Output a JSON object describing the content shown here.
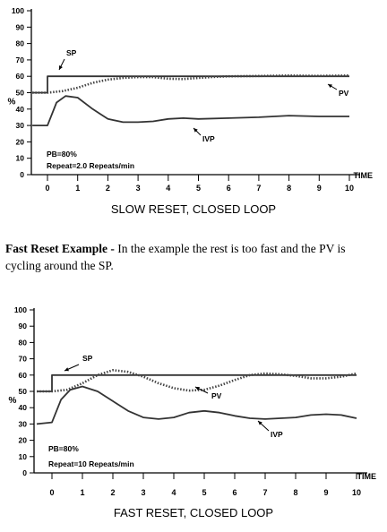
{
  "chart_data": [
    {
      "type": "line",
      "ylabel": "%",
      "xlabel": "TIME",
      "caption": "SLOW RESET, CLOSED LOOP",
      "xlim": [
        0,
        10
      ],
      "ylim": [
        0,
        100
      ],
      "x_ticks": [
        "0",
        "1",
        "2",
        "3",
        "4",
        "5",
        "6",
        "7",
        "8",
        "9",
        "10"
      ],
      "y_ticks": [
        "0",
        "10",
        "20",
        "30",
        "40",
        "50",
        "60",
        "70",
        "80",
        "90",
        "100"
      ],
      "annotations": {
        "sp": "SP",
        "pv": "PV",
        "ivp": "IVP",
        "pb": "PB=80%",
        "repeat": "Repeat=2.0 Repeats/min"
      },
      "series": [
        {
          "name": "SP",
          "style": "solid",
          "x": [
            -0.5,
            0,
            0,
            10
          ],
          "y": [
            50,
            50,
            60,
            60
          ]
        },
        {
          "name": "PV",
          "style": "dotted",
          "x": [
            -0.5,
            0,
            0.5,
            1,
            1.5,
            2,
            2.5,
            3,
            3.5,
            4,
            4.5,
            5,
            5.5,
            6,
            7,
            8,
            9,
            10
          ],
          "y": [
            50,
            50,
            51,
            53,
            56,
            58,
            59,
            59.5,
            59.5,
            58.5,
            58.3,
            59,
            59.6,
            60,
            60.2,
            60.5,
            60.3,
            60.5
          ]
        },
        {
          "name": "IVP",
          "style": "solid",
          "x": [
            -0.5,
            0,
            0.3,
            0.6,
            1,
            1.5,
            2,
            2.5,
            3,
            3.5,
            4,
            4.5,
            5,
            6,
            7,
            8,
            9,
            10
          ],
          "y": [
            30,
            30,
            44,
            48,
            47,
            40,
            34,
            32,
            32,
            32.5,
            34,
            34.5,
            34,
            34.5,
            35,
            36,
            35.5,
            35.5
          ]
        }
      ]
    },
    {
      "type": "line",
      "ylabel": "%",
      "xlabel": "TIME",
      "caption": "FAST RESET, CLOSED LOOP",
      "xlim": [
        0,
        10
      ],
      "ylim": [
        0,
        100
      ],
      "x_ticks": [
        "0",
        "1",
        "2",
        "3",
        "4",
        "5",
        "6",
        "7",
        "8",
        "9",
        "10"
      ],
      "y_ticks": [
        "0",
        "10",
        "20",
        "30",
        "40",
        "50",
        "60",
        "70",
        "80",
        "90",
        "100"
      ],
      "annotations": {
        "sp": "SP",
        "pv": "PV",
        "ivp": "IVP",
        "pb": "PB=80%",
        "repeat": "Repeat=10 Repeats/min"
      },
      "series": [
        {
          "name": "SP",
          "style": "solid",
          "x": [
            -0.5,
            0,
            0,
            10
          ],
          "y": [
            50,
            50,
            60,
            60
          ]
        },
        {
          "name": "PV",
          "style": "dotted",
          "x": [
            -0.5,
            0,
            0.5,
            1,
            1.5,
            2,
            2.5,
            3,
            3.5,
            4,
            4.5,
            5,
            5.5,
            6,
            6.5,
            7,
            7.5,
            8,
            8.5,
            9,
            9.5,
            10
          ],
          "y": [
            50,
            50,
            51,
            55,
            60,
            63,
            62,
            59,
            55,
            52,
            50.5,
            51,
            53.5,
            57,
            60,
            61,
            60.5,
            59.5,
            58,
            58,
            59,
            61
          ]
        },
        {
          "name": "IVP",
          "style": "solid",
          "x": [
            -0.5,
            0,
            0.3,
            0.6,
            1,
            1.5,
            2,
            2.5,
            3,
            3.5,
            4,
            4.5,
            5,
            5.5,
            6,
            6.5,
            7,
            7.5,
            8,
            8.5,
            9,
            9.5,
            10
          ],
          "y": [
            30,
            31,
            45,
            51,
            53,
            50,
            44,
            38,
            34,
            33,
            34,
            37,
            38,
            37,
            35,
            33.5,
            33,
            33.5,
            34,
            35.5,
            36,
            35.5,
            33.5
          ]
        }
      ]
    }
  ],
  "paragraph": {
    "lead": "Fast Reset Example -",
    "text": "In the example the rest is too fast and the PV is cycling around the SP."
  }
}
